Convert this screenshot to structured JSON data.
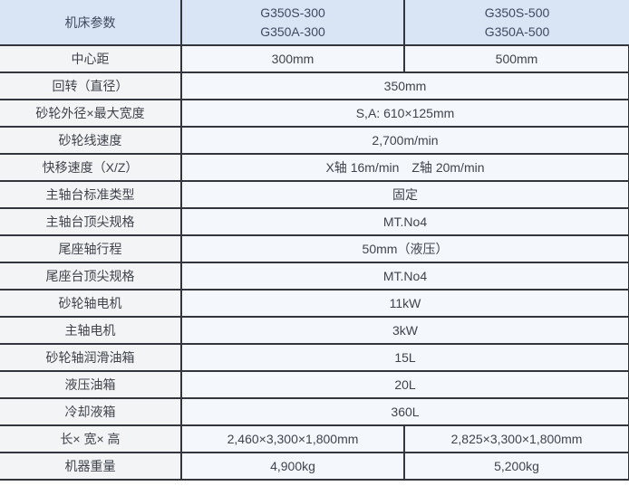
{
  "table": {
    "header": {
      "param_label": "机床参数",
      "models": [
        {
          "lines": [
            "G350S-300",
            "G350A-300"
          ]
        },
        {
          "lines": [
            "G350S-500",
            "G350A-500"
          ]
        }
      ]
    },
    "rows": [
      {
        "label": "中心距",
        "values": [
          "300mm",
          "500mm"
        ]
      },
      {
        "label": "回转（直径）",
        "values": [
          "350mm"
        ]
      },
      {
        "label": "砂轮外径×最大宽度",
        "values": [
          "S,A: 610×125mm"
        ]
      },
      {
        "label": "砂轮线速度",
        "values": [
          "2,700m/min"
        ]
      },
      {
        "label": "快移速度（X/Z）",
        "values": [
          "X轴 16m/min　Z轴 20m/min"
        ]
      },
      {
        "label": "主轴台标准类型",
        "values": [
          "固定"
        ]
      },
      {
        "label": "主轴台顶尖规格",
        "values": [
          "MT.No4"
        ]
      },
      {
        "label": "尾座轴行程",
        "values": [
          "50mm（液压）"
        ]
      },
      {
        "label": "尾座台顶尖规格",
        "values": [
          "MT.No4"
        ]
      },
      {
        "label": "砂轮轴电机",
        "values": [
          "11kW"
        ]
      },
      {
        "label": "主轴电机",
        "values": [
          "3kW"
        ]
      },
      {
        "label": "砂轮轴润滑油箱",
        "values": [
          "15L"
        ]
      },
      {
        "label": "液压油箱",
        "values": [
          "20L"
        ]
      },
      {
        "label": "冷却液箱",
        "values": [
          "360L"
        ]
      },
      {
        "label": "长× 宽× 高",
        "values": [
          "2,460×3,300×1,800mm",
          "2,825×3,300×1,800mm"
        ]
      },
      {
        "label": "机器重量",
        "values": [
          "4,900kg",
          "5,200kg"
        ]
      }
    ]
  },
  "colors": {
    "header_bg": "#d9e5f4",
    "label_bg": "#f2f4f6",
    "value_bg": "#f4f8fd",
    "border": "#33373d",
    "text": "#40444a"
  }
}
